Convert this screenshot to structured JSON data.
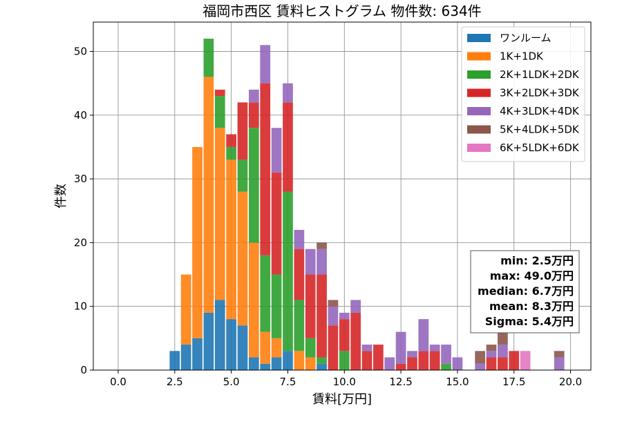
{
  "chart_data": {
    "type": "bar",
    "stacked": true,
    "title": "福岡市西区 賃料ヒストグラム  物件数: 634件",
    "xlabel": "賃料[万円]",
    "ylabel": "件数",
    "xlim": [
      -1.1,
      20.9
    ],
    "ylim": [
      0,
      54.6
    ],
    "bin_width": 0.5,
    "xticks": [
      0.0,
      2.5,
      5.0,
      7.5,
      10.0,
      12.5,
      15.0,
      17.5,
      20.0
    ],
    "xtick_labels": [
      "0.0",
      "2.5",
      "5.0",
      "7.5",
      "10.0",
      "12.5",
      "15.0",
      "17.5",
      "20.0"
    ],
    "yticks": [
      0,
      10,
      20,
      30,
      40,
      50
    ],
    "ytick_labels": [
      "0",
      "10",
      "20",
      "30",
      "40",
      "50"
    ],
    "grid": true,
    "legend_position": "top-right",
    "x": [
      2.5,
      3.0,
      3.5,
      4.0,
      4.5,
      5.0,
      5.5,
      6.0,
      6.5,
      7.0,
      7.5,
      8.0,
      8.5,
      9.0,
      9.5,
      10.0,
      10.5,
      11.0,
      11.5,
      12.0,
      12.5,
      13.0,
      13.5,
      14.0,
      14.5,
      15.0,
      15.5,
      16.0,
      16.5,
      17.0,
      17.5,
      18.0,
      18.5,
      19.0,
      19.5
    ],
    "series": [
      {
        "name": "ワンルーム",
        "color": "#1f77b4",
        "values": [
          3,
          4,
          5,
          9,
          11,
          8,
          7,
          2,
          1,
          2,
          3,
          0,
          0,
          1,
          0,
          0,
          0,
          0,
          0,
          0,
          0,
          0,
          0,
          0,
          0,
          0,
          0,
          0,
          0,
          0,
          0,
          0,
          0,
          0,
          0
        ]
      },
      {
        "name": "1K+1DK",
        "color": "#ff7f0e",
        "values": [
          0,
          11,
          30,
          37,
          27,
          25,
          21,
          18,
          5,
          3,
          0,
          3,
          2,
          0,
          0,
          0,
          0,
          0,
          0,
          0,
          0,
          0,
          0,
          0,
          0,
          0,
          0,
          0,
          0,
          0,
          0,
          0,
          0,
          0,
          0
        ]
      },
      {
        "name": "2K+1LDK+2DK",
        "color": "#2ca02c",
        "values": [
          0,
          0,
          0,
          6,
          5,
          2,
          5,
          18,
          12,
          10,
          25,
          8,
          3,
          1,
          0,
          3,
          0,
          0,
          0,
          0,
          0,
          0,
          0,
          0,
          1,
          0,
          0,
          0,
          0,
          0,
          0,
          0,
          0,
          0,
          0
        ]
      },
      {
        "name": "3K+2LDK+3DK",
        "color": "#d62728",
        "values": [
          0,
          0,
          0,
          0,
          1,
          2,
          9,
          4,
          27,
          16,
          14,
          8,
          10,
          13,
          7,
          5,
          9,
          3,
          4,
          0,
          1,
          2,
          3,
          3,
          0,
          0,
          0,
          0,
          2,
          2,
          3,
          0,
          0,
          0,
          0
        ]
      },
      {
        "name": "4K+3LDK+4DK",
        "color": "#9467bd",
        "values": [
          0,
          0,
          0,
          0,
          0,
          0,
          0,
          2,
          6,
          7,
          3,
          3,
          4,
          4,
          3,
          1,
          2,
          1,
          0,
          2,
          5,
          1,
          5,
          1,
          3,
          2,
          0,
          1,
          1,
          2,
          0,
          0,
          0,
          0,
          2
        ]
      },
      {
        "name": "5K+4LDK+5DK",
        "color": "#8c564b",
        "values": [
          0,
          0,
          0,
          0,
          0,
          0,
          0,
          0,
          0,
          0,
          0,
          0,
          0,
          1,
          1,
          0,
          0,
          0,
          0,
          0,
          0,
          0,
          0,
          0,
          0,
          0,
          0,
          2,
          1,
          2,
          0,
          0,
          0,
          0,
          1
        ]
      },
      {
        "name": "6K+5LDK+6DK",
        "color": "#e377c2",
        "values": [
          0,
          0,
          0,
          0,
          0,
          0,
          0,
          0,
          0,
          0,
          0,
          0,
          0,
          0,
          0,
          0,
          0,
          0,
          0,
          0,
          0,
          0,
          0,
          0,
          0,
          0,
          0,
          0,
          0,
          0,
          0,
          3,
          0,
          0,
          0
        ]
      }
    ],
    "annotations": [
      "min: 2.5万円",
      "max: 49.0万円",
      "median: 6.7万円",
      "mean: 8.3万円",
      "Sigma: 5.4万円"
    ]
  }
}
